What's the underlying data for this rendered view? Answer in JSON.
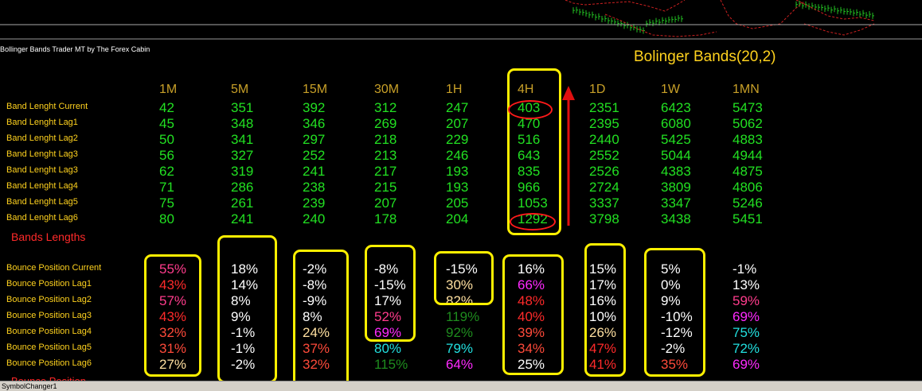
{
  "indicator_title": "Bollinger Bands Trader MT by The Forex Cabin",
  "main_title": "Bolinger Bands(20,2)",
  "timeframes": [
    "1M",
    "5M",
    "15M",
    "30M",
    "1H",
    "4H",
    "1D",
    "1W",
    "1MN"
  ],
  "length_section": {
    "label": "Bands Lengths",
    "rows": [
      {
        "label": "Band Lenght Current",
        "values": [
          "42",
          "351",
          "392",
          "312",
          "247",
          "403",
          "2351",
          "6423",
          "5473"
        ]
      },
      {
        "label": "Band Lenght Lag1",
        "values": [
          "45",
          "348",
          "346",
          "269",
          "207",
          "470",
          "2395",
          "6080",
          "5062"
        ]
      },
      {
        "label": "Band Lenght Lag2",
        "values": [
          "50",
          "341",
          "297",
          "218",
          "229",
          "516",
          "2440",
          "5425",
          "4883"
        ]
      },
      {
        "label": "Band Lenght Lag3",
        "values": [
          "56",
          "327",
          "252",
          "213",
          "246",
          "643",
          "2552",
          "5044",
          "4944"
        ]
      },
      {
        "label": "Band Lenght Lag3",
        "values": [
          "62",
          "319",
          "241",
          "217",
          "193",
          "835",
          "2526",
          "4383",
          "4875"
        ]
      },
      {
        "label": "Band Lenght Lag4",
        "values": [
          "71",
          "286",
          "238",
          "215",
          "193",
          "966",
          "2724",
          "3809",
          "4806"
        ]
      },
      {
        "label": "Band Lenght Lag5",
        "values": [
          "75",
          "261",
          "239",
          "207",
          "205",
          "1053",
          "3337",
          "3347",
          "5246"
        ]
      },
      {
        "label": "Band Lenght Lag6",
        "values": [
          "80",
          "241",
          "240",
          "178",
          "204",
          "1292",
          "3798",
          "3438",
          "5451"
        ]
      }
    ],
    "value_color": "#22e022"
  },
  "bounce_section": {
    "rows": [
      {
        "label": "Bounce Position Current",
        "cells": [
          {
            "v": "55%",
            "c": "#ff3c8c"
          },
          {
            "v": "18%",
            "c": "#ffffff"
          },
          {
            "v": "-2%",
            "c": "#ffffff"
          },
          {
            "v": "-8%",
            "c": "#ffffff"
          },
          {
            "v": "-15%",
            "c": "#ffffff"
          },
          {
            "v": "16%",
            "c": "#ffffff"
          },
          {
            "v": "15%",
            "c": "#ffffff"
          },
          {
            "v": "5%",
            "c": "#ffffff"
          },
          {
            "v": "-1%",
            "c": "#ffffff"
          }
        ]
      },
      {
        "label": "Bounce Position Lag1",
        "cells": [
          {
            "v": "43%",
            "c": "#ff2a2a"
          },
          {
            "v": "14%",
            "c": "#ffffff"
          },
          {
            "v": "-8%",
            "c": "#ffffff"
          },
          {
            "v": "-15%",
            "c": "#ffffff"
          },
          {
            "v": "30%",
            "c": "#ffe0a0"
          },
          {
            "v": "66%",
            "c": "#ff2aff"
          },
          {
            "v": "17%",
            "c": "#ffffff"
          },
          {
            "v": "0%",
            "c": "#ffffff"
          },
          {
            "v": "13%",
            "c": "#ffffff"
          }
        ]
      },
      {
        "label": "Bounce Position Lag2",
        "cells": [
          {
            "v": "57%",
            "c": "#ff3c8c"
          },
          {
            "v": "8%",
            "c": "#ffffff"
          },
          {
            "v": "-9%",
            "c": "#ffffff"
          },
          {
            "v": "17%",
            "c": "#ffffff"
          },
          {
            "v": "82%",
            "c": "#ffe0a0"
          },
          {
            "v": "48%",
            "c": "#ff2a2a"
          },
          {
            "v": "16%",
            "c": "#ffffff"
          },
          {
            "v": "9%",
            "c": "#ffffff"
          },
          {
            "v": "59%",
            "c": "#ff3c8c"
          }
        ]
      },
      {
        "label": "Bounce Position Lag3",
        "cells": [
          {
            "v": "43%",
            "c": "#ff2a2a"
          },
          {
            "v": "9%",
            "c": "#ffffff"
          },
          {
            "v": "8%",
            "c": "#ffffff"
          },
          {
            "v": "52%",
            "c": "#ff3c8c"
          },
          {
            "v": "119%",
            "c": "#1e8c1e"
          },
          {
            "v": "40%",
            "c": "#ff2a2a"
          },
          {
            "v": "10%",
            "c": "#ffffff"
          },
          {
            "v": "-10%",
            "c": "#ffffff"
          },
          {
            "v": "69%",
            "c": "#ff2aff"
          }
        ]
      },
      {
        "label": "Bounce Position Lag4",
        "cells": [
          {
            "v": "32%",
            "c": "#ff4a3a"
          },
          {
            "v": "-1%",
            "c": "#ffffff"
          },
          {
            "v": "24%",
            "c": "#ffe0a0"
          },
          {
            "v": "69%",
            "c": "#ff2aff"
          },
          {
            "v": "92%",
            "c": "#1e8c1e"
          },
          {
            "v": "39%",
            "c": "#ff4a3a"
          },
          {
            "v": "26%",
            "c": "#ffe0a0"
          },
          {
            "v": "-12%",
            "c": "#ffffff"
          },
          {
            "v": "75%",
            "c": "#22e0e0"
          }
        ]
      },
      {
        "label": "Bounce Position Lag5",
        "cells": [
          {
            "v": "31%",
            "c": "#ff4a3a"
          },
          {
            "v": "-1%",
            "c": "#ffffff"
          },
          {
            "v": "37%",
            "c": "#ff4a3a"
          },
          {
            "v": "80%",
            "c": "#22e0e0"
          },
          {
            "v": "79%",
            "c": "#22e0e0"
          },
          {
            "v": "34%",
            "c": "#ff4a3a"
          },
          {
            "v": "47%",
            "c": "#ff2a2a"
          },
          {
            "v": "-2%",
            "c": "#ffffff"
          },
          {
            "v": "72%",
            "c": "#22e0e0"
          }
        ]
      },
      {
        "label": "Bounce Position Lag6",
        "cells": [
          {
            "v": "27%",
            "c": "#ffe0a0"
          },
          {
            "v": "-2%",
            "c": "#ffffff"
          },
          {
            "v": "32%",
            "c": "#ff4a3a"
          },
          {
            "v": "115%",
            "c": "#1e8c1e"
          },
          {
            "v": "64%",
            "c": "#ff2aff"
          },
          {
            "v": "25%",
            "c": "#ffffff"
          },
          {
            "v": "41%",
            "c": "#ff2a2a"
          },
          {
            "v": "35%",
            "c": "#ff4a3a"
          },
          {
            "v": "69%",
            "c": "#ff2aff"
          }
        ]
      }
    ]
  },
  "status_bar": {
    "text": "SymbolChanger1"
  },
  "colors": {
    "highlight_box": "#fff000",
    "annotation_red": "#ff1a1a",
    "label_yellow": "#ffd21e"
  }
}
